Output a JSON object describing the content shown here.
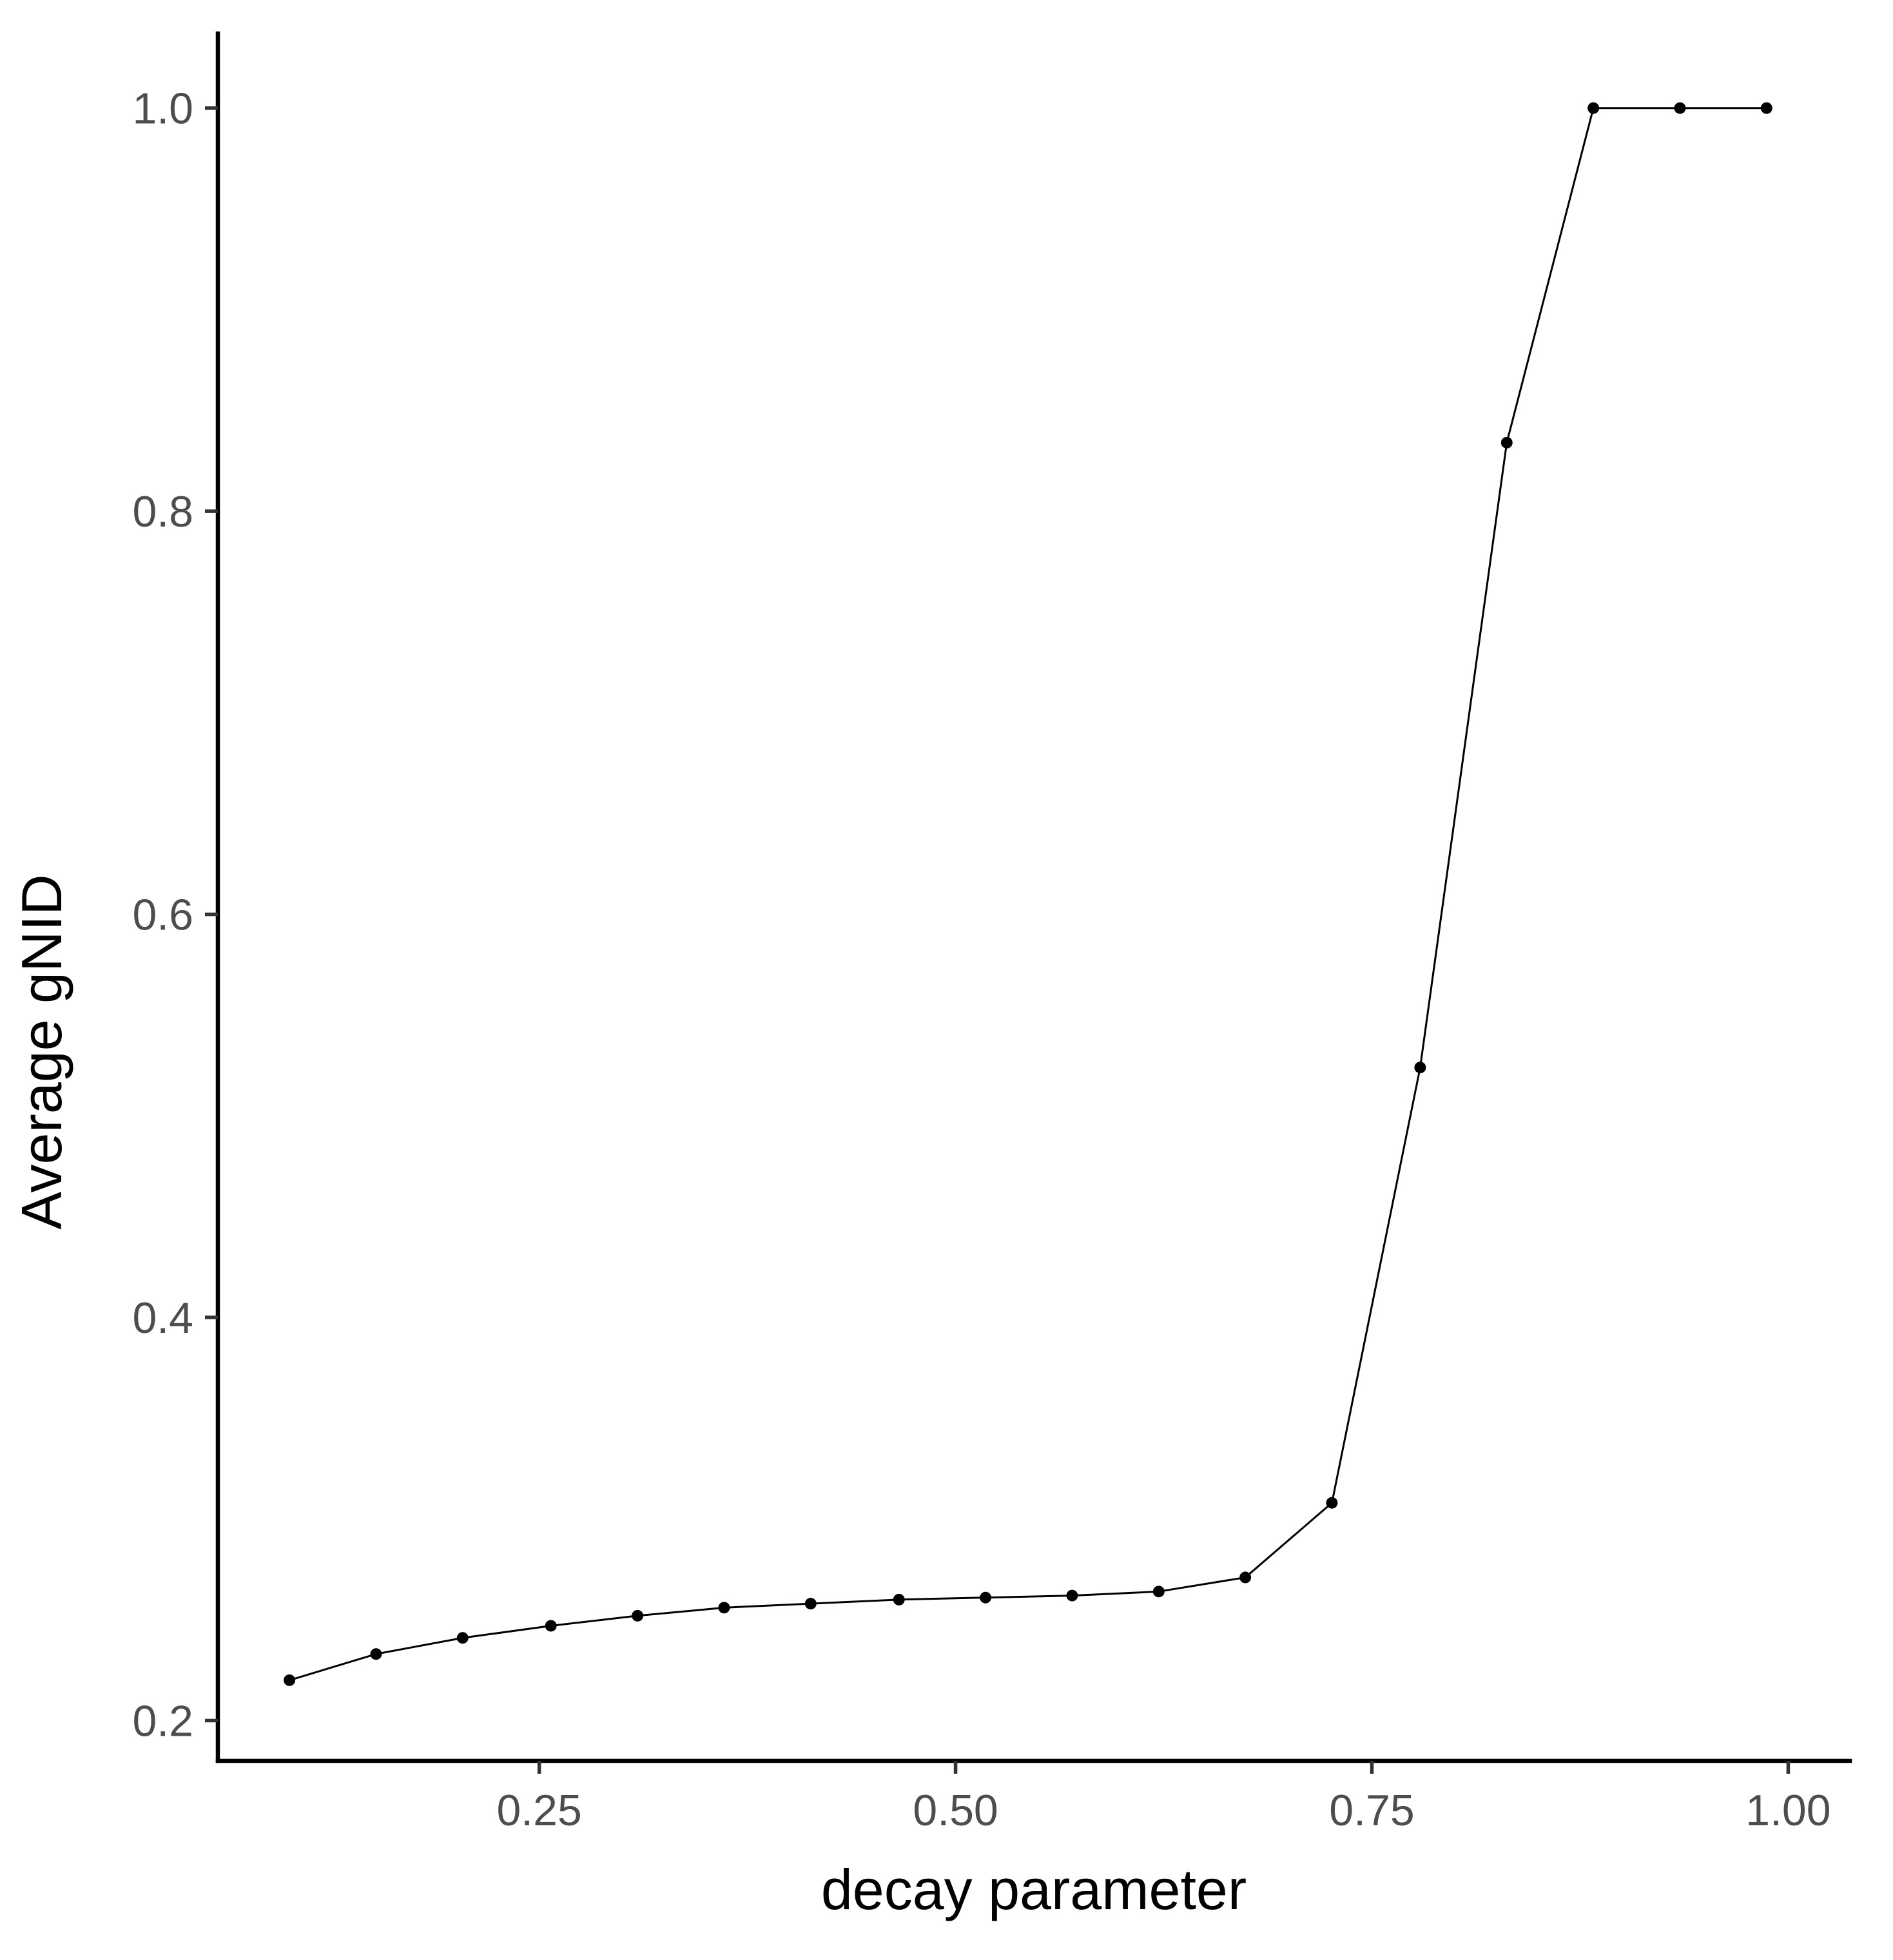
{
  "chart_data": {
    "type": "line",
    "title": "",
    "xlabel": "decay parameter",
    "ylabel": "Average gNID",
    "xlim": [
      0.057,
      1.037
    ],
    "ylim": [
      0.18,
      1.037
    ],
    "x_ticks": [
      0.25,
      0.5,
      0.75,
      1.0
    ],
    "x_tick_labels": [
      "0.25",
      "0.50",
      "0.75",
      "1.00"
    ],
    "y_ticks": [
      0.2,
      0.4,
      0.6,
      0.8,
      1.0
    ],
    "y_tick_labels": [
      "0.2",
      "0.4",
      "0.6",
      "0.8",
      "1.0"
    ],
    "grid": false,
    "series": [
      {
        "x": [
          0.1,
          0.152,
          0.204,
          0.257,
          0.309,
          0.361,
          0.413,
          0.466,
          0.518,
          0.57,
          0.622,
          0.674,
          0.726,
          0.779,
          0.831,
          0.883,
          0.935,
          0.987
        ],
        "y": [
          0.22,
          0.233,
          0.241,
          0.247,
          0.252,
          0.256,
          0.258,
          0.26,
          0.261,
          0.262,
          0.264,
          0.271,
          0.308,
          0.524,
          0.834,
          1.0,
          1.0,
          1.0
        ]
      }
    ]
  }
}
